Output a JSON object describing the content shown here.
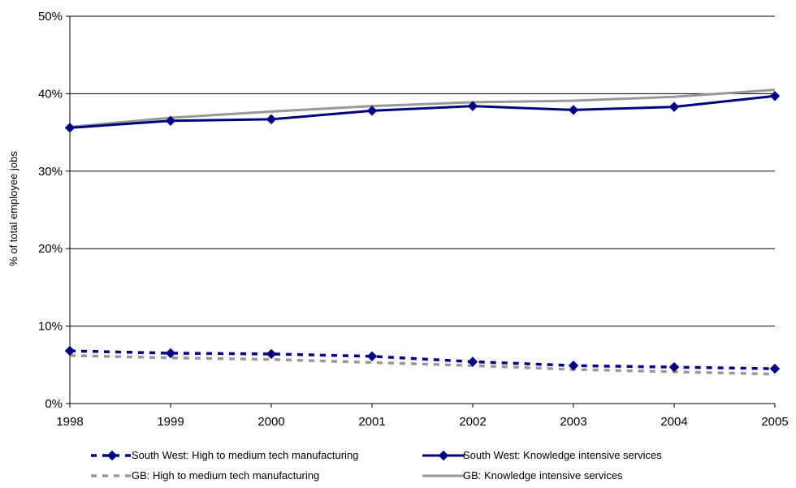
{
  "chart_data": {
    "type": "line",
    "title": "",
    "xlabel": "",
    "ylabel": "% of total employee jobs",
    "categories": [
      "1998",
      "1999",
      "2000",
      "2001",
      "2002",
      "2003",
      "2004",
      "2005"
    ],
    "y_ticks": [
      "0%",
      "10%",
      "20%",
      "30%",
      "40%",
      "50%"
    ],
    "ylim": [
      0,
      50
    ],
    "grid": "horizontal",
    "legend_position": "bottom",
    "series": [
      {
        "name": "South West: High to medium tech manufacturing",
        "values": [
          6.8,
          6.5,
          6.4,
          6.1,
          5.4,
          4.9,
          4.7,
          4.5
        ],
        "color": "#000080",
        "line_style": "dashed",
        "marker": "diamond"
      },
      {
        "name": "South West: Knowledge intensive services",
        "values": [
          35.6,
          36.5,
          36.7,
          37.8,
          38.4,
          37.9,
          38.3,
          39.7
        ],
        "color": "#000080",
        "line_style": "solid",
        "marker": "diamond"
      },
      {
        "name": "GB: High to medium tech manufacturing",
        "values": [
          6.2,
          5.9,
          5.7,
          5.3,
          4.9,
          4.4,
          4.1,
          3.8
        ],
        "color": "#999999",
        "line_style": "dashed",
        "marker": "none"
      },
      {
        "name": "GB: Knowledge intensive services",
        "values": [
          35.7,
          36.9,
          37.7,
          38.4,
          38.9,
          39.1,
          39.6,
          40.5
        ],
        "color": "#999999",
        "line_style": "solid",
        "marker": "none"
      }
    ]
  }
}
